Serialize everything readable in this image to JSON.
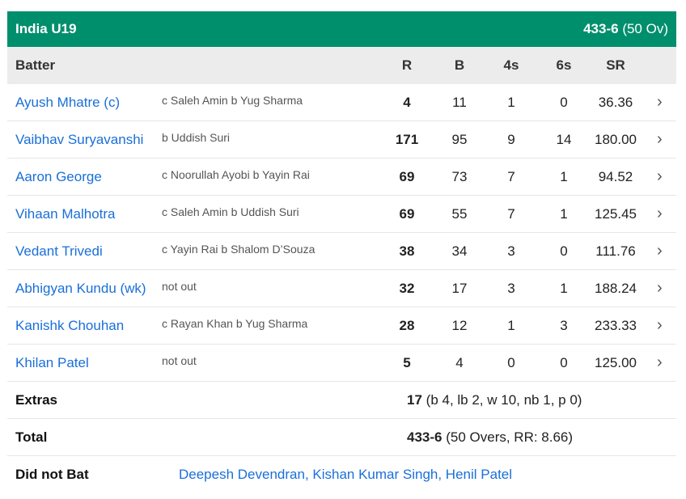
{
  "team": {
    "name": "India U19",
    "score": "433-6",
    "overs": "(50 Ov)"
  },
  "headers": {
    "batter": "Batter",
    "r": "R",
    "b": "B",
    "fours": "4s",
    "sixes": "6s",
    "sr": "SR"
  },
  "batters": [
    {
      "name": "Ayush Mhatre (c)",
      "dismissal": "c Saleh Amin b Yug Sharma",
      "r": "4",
      "b": "11",
      "fours": "1",
      "sixes": "0",
      "sr": "36.36"
    },
    {
      "name": "Vaibhav Suryavanshi",
      "dismissal": "b Uddish Suri",
      "r": "171",
      "b": "95",
      "fours": "9",
      "sixes": "14",
      "sr": "180.00"
    },
    {
      "name": "Aaron George",
      "dismissal": "c Noorullah Ayobi b Yayin Rai",
      "r": "69",
      "b": "73",
      "fours": "7",
      "sixes": "1",
      "sr": "94.52"
    },
    {
      "name": "Vihaan Malhotra",
      "dismissal": "c Saleh Amin b Uddish Suri",
      "r": "69",
      "b": "55",
      "fours": "7",
      "sixes": "1",
      "sr": "125.45"
    },
    {
      "name": "Vedant Trivedi",
      "dismissal": "c Yayin Rai b Shalom D’Souza",
      "r": "38",
      "b": "34",
      "fours": "3",
      "sixes": "0",
      "sr": "111.76"
    },
    {
      "name": "Abhigyan Kundu (wk)",
      "dismissal": "not out",
      "r": "32",
      "b": "17",
      "fours": "3",
      "sixes": "1",
      "sr": "188.24"
    },
    {
      "name": "Kanishk Chouhan",
      "dismissal": "c Rayan Khan b Yug Sharma",
      "r": "28",
      "b": "12",
      "fours": "1",
      "sixes": "3",
      "sr": "233.33"
    },
    {
      "name": "Khilan Patel",
      "dismissal": "not out",
      "r": "5",
      "b": "4",
      "fours": "0",
      "sixes": "0",
      "sr": "125.00"
    }
  ],
  "extras": {
    "label": "Extras",
    "value": "17",
    "detail": "(b 4, lb 2, w 10, nb 1, p 0)"
  },
  "total": {
    "label": "Total",
    "value": "433-6",
    "detail": "(50 Overs, RR: 8.66)"
  },
  "did_not_bat": {
    "label": "Did not Bat",
    "players": "Deepesh Devendran, Kishan Kumar Singh, Henil Patel"
  },
  "colors": {
    "header_green": "#008f6d",
    "link_blue": "#1a6fd9"
  }
}
